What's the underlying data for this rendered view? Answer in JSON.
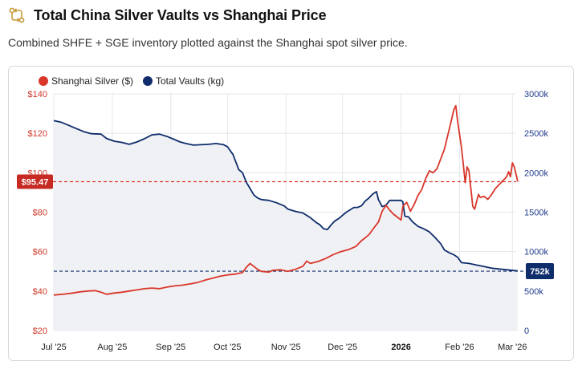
{
  "header": {
    "title": "Total China Silver Vaults vs Shanghai Price",
    "subtitle": "Combined SHFE + SGE inventory plotted against the Shanghai spot silver price."
  },
  "colors": {
    "price": "#d9362a",
    "vaults": "#0f2d6b",
    "grid": "#e5e7eb",
    "area": "#eef0f4"
  },
  "chart_data": {
    "type": "line",
    "x_tick_labels": [
      "Jul '25",
      "Aug '25",
      "Sep '25",
      "Oct '25",
      "Nov '25",
      "Dec '25",
      "2026",
      "Feb '26",
      "Mar '26"
    ],
    "x_tick_bold": [
      false,
      false,
      false,
      false,
      false,
      false,
      true,
      false,
      false
    ],
    "x_range_days": [
      0,
      245
    ],
    "x_tick_days": [
      0,
      31,
      62,
      92,
      123,
      153,
      184,
      215,
      243
    ],
    "left_axis": {
      "label": "Shanghai Silver ($)",
      "min": 20,
      "max": 140,
      "ticks": [
        "$20",
        "$40",
        "$60",
        "$80",
        "$100",
        "$120",
        "$140"
      ],
      "tick_values": [
        20,
        40,
        60,
        80,
        100,
        120,
        140
      ]
    },
    "right_axis": {
      "label": "Total Vaults (kg)",
      "min": 0,
      "max": 3000000,
      "ticks": [
        "0",
        "500k",
        "1000k",
        "1500k",
        "2000k",
        "2500k",
        "3000k"
      ],
      "tick_values": [
        0,
        500000,
        1000000,
        1500000,
        2000000,
        2500000,
        3000000
      ]
    },
    "legend": [
      {
        "name": "Shanghai Silver ($)",
        "color": "#d9362a"
      },
      {
        "name": "Total Vaults (kg)",
        "color": "#0f2d6b"
      }
    ],
    "reference_lines": {
      "price": {
        "value": 95.47,
        "label": "$95.47"
      },
      "vaults": {
        "value": 752000,
        "label": "752k"
      }
    },
    "series": [
      {
        "name": "Shanghai Silver ($)",
        "axis": "left",
        "points": [
          [
            0,
            38
          ],
          [
            6,
            38.5
          ],
          [
            10,
            39
          ],
          [
            14,
            39.6
          ],
          [
            18,
            40
          ],
          [
            22,
            40.2
          ],
          [
            25,
            39.4
          ],
          [
            28,
            38.4
          ],
          [
            32,
            39
          ],
          [
            36,
            39.4
          ],
          [
            40,
            40
          ],
          [
            44,
            40.6
          ],
          [
            48,
            41.2
          ],
          [
            52,
            41.5
          ],
          [
            56,
            41.2
          ],
          [
            60,
            42
          ],
          [
            64,
            42.6
          ],
          [
            68,
            43
          ],
          [
            72,
            43.6
          ],
          [
            76,
            44.3
          ],
          [
            80,
            45.5
          ],
          [
            84,
            46.5
          ],
          [
            88,
            47.5
          ],
          [
            92,
            48.2
          ],
          [
            96,
            48.6
          ],
          [
            100,
            49.4
          ],
          [
            102,
            52
          ],
          [
            104,
            54
          ],
          [
            106,
            52.5
          ],
          [
            108,
            51
          ],
          [
            110,
            50
          ],
          [
            114,
            49.6
          ],
          [
            116,
            50.5
          ],
          [
            120,
            50.8
          ],
          [
            124,
            50
          ],
          [
            128,
            51
          ],
          [
            132,
            52.6
          ],
          [
            134,
            55.2
          ],
          [
            136,
            54
          ],
          [
            140,
            55
          ],
          [
            144,
            56.5
          ],
          [
            148,
            58.5
          ],
          [
            152,
            60
          ],
          [
            156,
            61
          ],
          [
            160,
            62.6
          ],
          [
            163,
            65.5
          ],
          [
            165,
            67
          ],
          [
            167,
            68.6
          ],
          [
            170,
            72.5
          ],
          [
            172,
            75
          ],
          [
            174,
            80.5
          ],
          [
            176,
            83.5
          ],
          [
            178,
            81
          ],
          [
            180,
            79
          ],
          [
            182,
            77.5
          ],
          [
            184,
            76
          ],
          [
            185,
            83
          ],
          [
            187,
            85
          ],
          [
            189,
            80.5
          ],
          [
            191,
            84
          ],
          [
            193,
            88.5
          ],
          [
            195,
            91.5
          ],
          [
            197,
            97
          ],
          [
            199,
            101
          ],
          [
            201,
            100
          ],
          [
            203,
            102
          ],
          [
            205,
            107
          ],
          [
            207,
            112
          ],
          [
            209,
            120
          ],
          [
            211,
            128
          ],
          [
            212,
            132
          ],
          [
            213,
            134
          ],
          [
            214,
            126
          ],
          [
            216,
            113
          ],
          [
            217,
            104
          ],
          [
            218,
            95
          ],
          [
            219,
            103
          ],
          [
            220,
            101
          ],
          [
            222,
            83
          ],
          [
            223,
            81.5
          ],
          [
            225,
            89
          ],
          [
            226,
            87.5
          ],
          [
            228,
            88
          ],
          [
            230,
            86.5
          ],
          [
            232,
            89
          ],
          [
            234,
            92
          ],
          [
            236,
            94
          ],
          [
            238,
            96
          ],
          [
            240,
            98
          ],
          [
            241,
            100.5
          ],
          [
            242,
            98
          ],
          [
            243,
            105
          ],
          [
            244,
            103
          ],
          [
            245,
            99
          ],
          [
            245.8,
            95.5
          ]
        ]
      },
      {
        "name": "Total Vaults (kg)",
        "axis": "right",
        "points": [
          [
            0,
            2660000
          ],
          [
            4,
            2640000
          ],
          [
            8,
            2600000
          ],
          [
            12,
            2560000
          ],
          [
            16,
            2520000
          ],
          [
            20,
            2495000
          ],
          [
            25,
            2490000
          ],
          [
            28,
            2435000
          ],
          [
            32,
            2400000
          ],
          [
            36,
            2385000
          ],
          [
            40,
            2360000
          ],
          [
            44,
            2390000
          ],
          [
            48,
            2430000
          ],
          [
            52,
            2480000
          ],
          [
            56,
            2490000
          ],
          [
            60,
            2460000
          ],
          [
            64,
            2420000
          ],
          [
            67,
            2390000
          ],
          [
            70,
            2370000
          ],
          [
            74,
            2350000
          ],
          [
            78,
            2355000
          ],
          [
            82,
            2360000
          ],
          [
            86,
            2370000
          ],
          [
            90,
            2355000
          ],
          [
            92,
            2330000
          ],
          [
            95,
            2230000
          ],
          [
            98,
            2040000
          ],
          [
            100,
            2000000
          ],
          [
            102,
            1880000
          ],
          [
            104,
            1800000
          ],
          [
            106,
            1720000
          ],
          [
            108,
            1680000
          ],
          [
            110,
            1660000
          ],
          [
            114,
            1650000
          ],
          [
            118,
            1620000
          ],
          [
            122,
            1580000
          ],
          [
            124,
            1540000
          ],
          [
            128,
            1510000
          ],
          [
            132,
            1490000
          ],
          [
            136,
            1430000
          ],
          [
            139,
            1370000
          ],
          [
            141,
            1340000
          ],
          [
            143,
            1290000
          ],
          [
            145,
            1280000
          ],
          [
            147,
            1340000
          ],
          [
            149,
            1390000
          ],
          [
            151,
            1420000
          ],
          [
            153,
            1460000
          ],
          [
            155,
            1500000
          ],
          [
            157,
            1530000
          ],
          [
            159,
            1560000
          ],
          [
            161,
            1560000
          ],
          [
            163,
            1580000
          ],
          [
            165,
            1640000
          ],
          [
            167,
            1680000
          ],
          [
            169,
            1730000
          ],
          [
            171,
            1760000
          ],
          [
            172,
            1660000
          ],
          [
            174,
            1570000
          ],
          [
            176,
            1590000
          ],
          [
            178,
            1650000
          ],
          [
            181,
            1650000
          ],
          [
            184,
            1650000
          ],
          [
            185,
            1630000
          ],
          [
            186,
            1450000
          ],
          [
            188,
            1440000
          ],
          [
            190,
            1380000
          ],
          [
            193,
            1320000
          ],
          [
            196,
            1290000
          ],
          [
            199,
            1250000
          ],
          [
            202,
            1180000
          ],
          [
            205,
            1100000
          ],
          [
            207,
            1020000
          ],
          [
            210,
            980000
          ],
          [
            212,
            960000
          ],
          [
            214,
            930000
          ],
          [
            216,
            860000
          ],
          [
            220,
            850000
          ],
          [
            224,
            830000
          ],
          [
            228,
            810000
          ],
          [
            232,
            790000
          ],
          [
            236,
            780000
          ],
          [
            240,
            770000
          ],
          [
            244,
            760000
          ],
          [
            245.8,
            756000
          ]
        ]
      }
    ]
  }
}
